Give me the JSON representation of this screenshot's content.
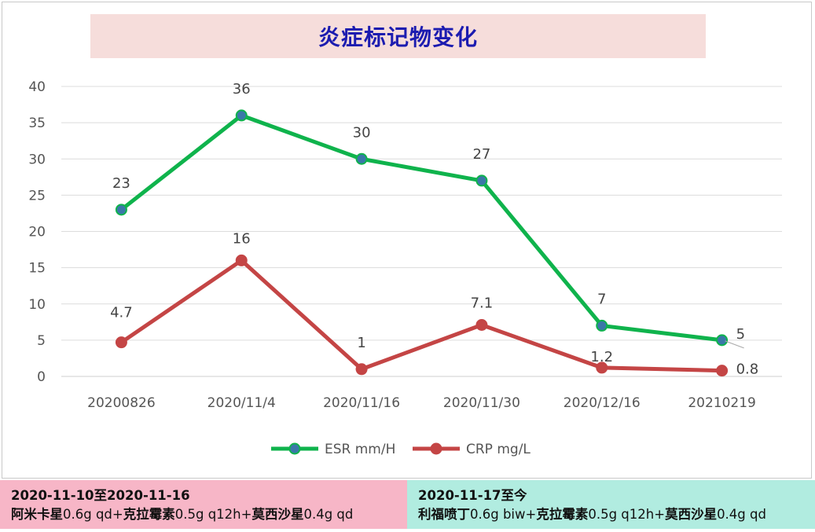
{
  "chart_data": {
    "type": "line",
    "title": "炎症标记物变化",
    "categories": [
      "20200826",
      "2020/11/4",
      "2020/11/16",
      "2020/11/30",
      "2020/12/16",
      "20210219"
    ],
    "ylim": [
      0,
      40
    ],
    "yticks": [
      0,
      5,
      10,
      15,
      20,
      25,
      30,
      35,
      40
    ],
    "grid": true,
    "legend_position": "bottom",
    "series": [
      {
        "name": "ESR mm/H",
        "color": "#0fb34c",
        "marker_color": "#3a78a8",
        "values": [
          23,
          36,
          30,
          27,
          7,
          5
        ],
        "labels": [
          "23",
          "36",
          "30",
          "27",
          "7",
          "5"
        ]
      },
      {
        "name": "CRP mg/L",
        "color": "#c44545",
        "marker_color": "#c44545",
        "values": [
          4.7,
          16,
          1,
          7.1,
          1.2,
          0.8
        ],
        "labels": [
          "4.7",
          "16",
          "1",
          "7.1",
          "1.2",
          "0.8"
        ]
      }
    ]
  },
  "notes": {
    "left": {
      "period": "2020-11-10至2020-11-16",
      "drug1": "阿米卡星",
      "dose1": "0.6g qd+",
      "drug2": "克拉霉素",
      "dose2": "0.5g q12h+",
      "drug3": "莫西沙星",
      "dose3": "0.4g qd",
      "color": "#f7b6c7"
    },
    "right": {
      "period": "2020-11-17至今",
      "drug1": "利福喷丁",
      "dose1": "0.6g biw+",
      "drug2": "克拉霉素",
      "dose2": "0.5g q12h+",
      "drug3": "莫西沙星",
      "dose3": "0.4g qd",
      "color": "#b1ece0"
    }
  }
}
